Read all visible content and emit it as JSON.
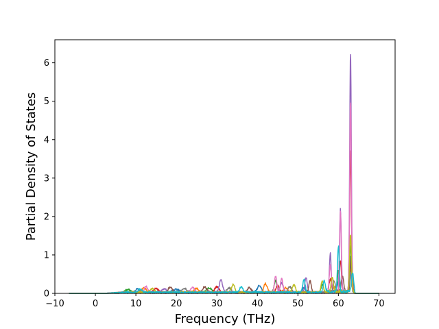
{
  "chart_data": {
    "type": "line",
    "title": "",
    "xlabel": "Frequency (THz)",
    "ylabel": "Partial Density of States",
    "xlim": [
      -10,
      74
    ],
    "ylim": [
      0,
      6.6
    ],
    "xticks": [
      -10,
      0,
      10,
      20,
      30,
      40,
      50,
      60,
      70
    ],
    "yticks": [
      0,
      1,
      2,
      3,
      4,
      5,
      6
    ],
    "grid": false,
    "legend": "none",
    "data_range": [
      -6.5,
      70
    ],
    "series": [
      {
        "color": "#1f77b4",
        "peaks": [
          [
            10.5,
            0.1,
            0.5
          ],
          [
            20,
            0.08,
            0.8
          ],
          [
            40.5,
            0.18,
            0.5
          ],
          [
            51.5,
            0.12,
            0.4
          ],
          [
            60,
            0.25,
            0.3
          ],
          [
            63,
            0.9,
            0.25
          ]
        ]
      },
      {
        "color": "#ff7f0e",
        "peaks": [
          [
            12,
            0.12,
            0.5
          ],
          [
            25,
            0.1,
            0.6
          ],
          [
            42,
            0.23,
            0.4
          ],
          [
            47,
            0.12,
            0.5
          ],
          [
            59,
            0.15,
            0.3
          ],
          [
            63,
            0.6,
            0.25
          ]
        ]
      },
      {
        "color": "#2ca02c",
        "peaks": [
          [
            8,
            0.08,
            0.6
          ],
          [
            28,
            0.12,
            0.6
          ],
          [
            44.5,
            0.3,
            0.35
          ],
          [
            56,
            0.2,
            0.3
          ],
          [
            60,
            0.55,
            0.25
          ],
          [
            63,
            1.2,
            0.25
          ]
        ]
      },
      {
        "color": "#d62728",
        "peaks": [
          [
            15,
            0.1,
            0.5
          ],
          [
            30,
            0.15,
            0.5
          ],
          [
            45,
            0.18,
            0.4
          ],
          [
            58,
            0.35,
            0.3
          ],
          [
            60.5,
            0.8,
            0.25
          ],
          [
            63,
            3.7,
            0.22
          ]
        ]
      },
      {
        "color": "#9467bd",
        "peaks": [
          [
            17,
            0.1,
            0.5
          ],
          [
            31,
            0.32,
            0.4
          ],
          [
            46,
            0.25,
            0.4
          ],
          [
            52,
            0.38,
            0.3
          ],
          [
            58,
            1.0,
            0.22
          ],
          [
            60.5,
            2.15,
            0.22
          ],
          [
            63,
            6.28,
            0.2
          ]
        ]
      },
      {
        "color": "#8c564b",
        "peaks": [
          [
            18.5,
            0.14,
            0.5
          ],
          [
            27,
            0.15,
            0.5
          ],
          [
            38,
            0.12,
            0.5
          ],
          [
            53,
            0.3,
            0.3
          ],
          [
            61,
            0.4,
            0.3
          ],
          [
            63.2,
            0.9,
            0.25
          ]
        ]
      },
      {
        "color": "#e377c2",
        "peaks": [
          [
            12.5,
            0.16,
            0.4
          ],
          [
            24,
            0.12,
            0.5
          ],
          [
            44.5,
            0.42,
            0.3
          ],
          [
            46,
            0.35,
            0.3
          ],
          [
            58,
            0.7,
            0.25
          ],
          [
            60.5,
            2.1,
            0.2
          ],
          [
            63,
            5.0,
            0.2
          ]
        ]
      },
      {
        "color": "#7f7f7f",
        "peaks": [
          [
            22,
            0.1,
            0.6
          ],
          [
            33,
            0.12,
            0.5
          ],
          [
            48,
            0.15,
            0.4
          ],
          [
            59,
            0.3,
            0.3
          ],
          [
            63,
            0.5,
            0.25
          ]
        ]
      },
      {
        "color": "#bcbd22",
        "peaks": [
          [
            14,
            0.1,
            0.5
          ],
          [
            34,
            0.2,
            0.4
          ],
          [
            49,
            0.2,
            0.4
          ],
          [
            56,
            0.3,
            0.3
          ],
          [
            58.5,
            0.35,
            0.3
          ],
          [
            63,
            1.5,
            0.22
          ]
        ]
      },
      {
        "color": "#17becf",
        "peaks": [
          [
            11,
            0.08,
            0.5
          ],
          [
            36,
            0.14,
            0.4
          ],
          [
            51.5,
            0.33,
            0.3
          ],
          [
            56.5,
            0.3,
            0.3
          ],
          [
            60,
            1.2,
            0.22
          ],
          [
            63.5,
            0.5,
            0.25
          ]
        ]
      }
    ]
  }
}
